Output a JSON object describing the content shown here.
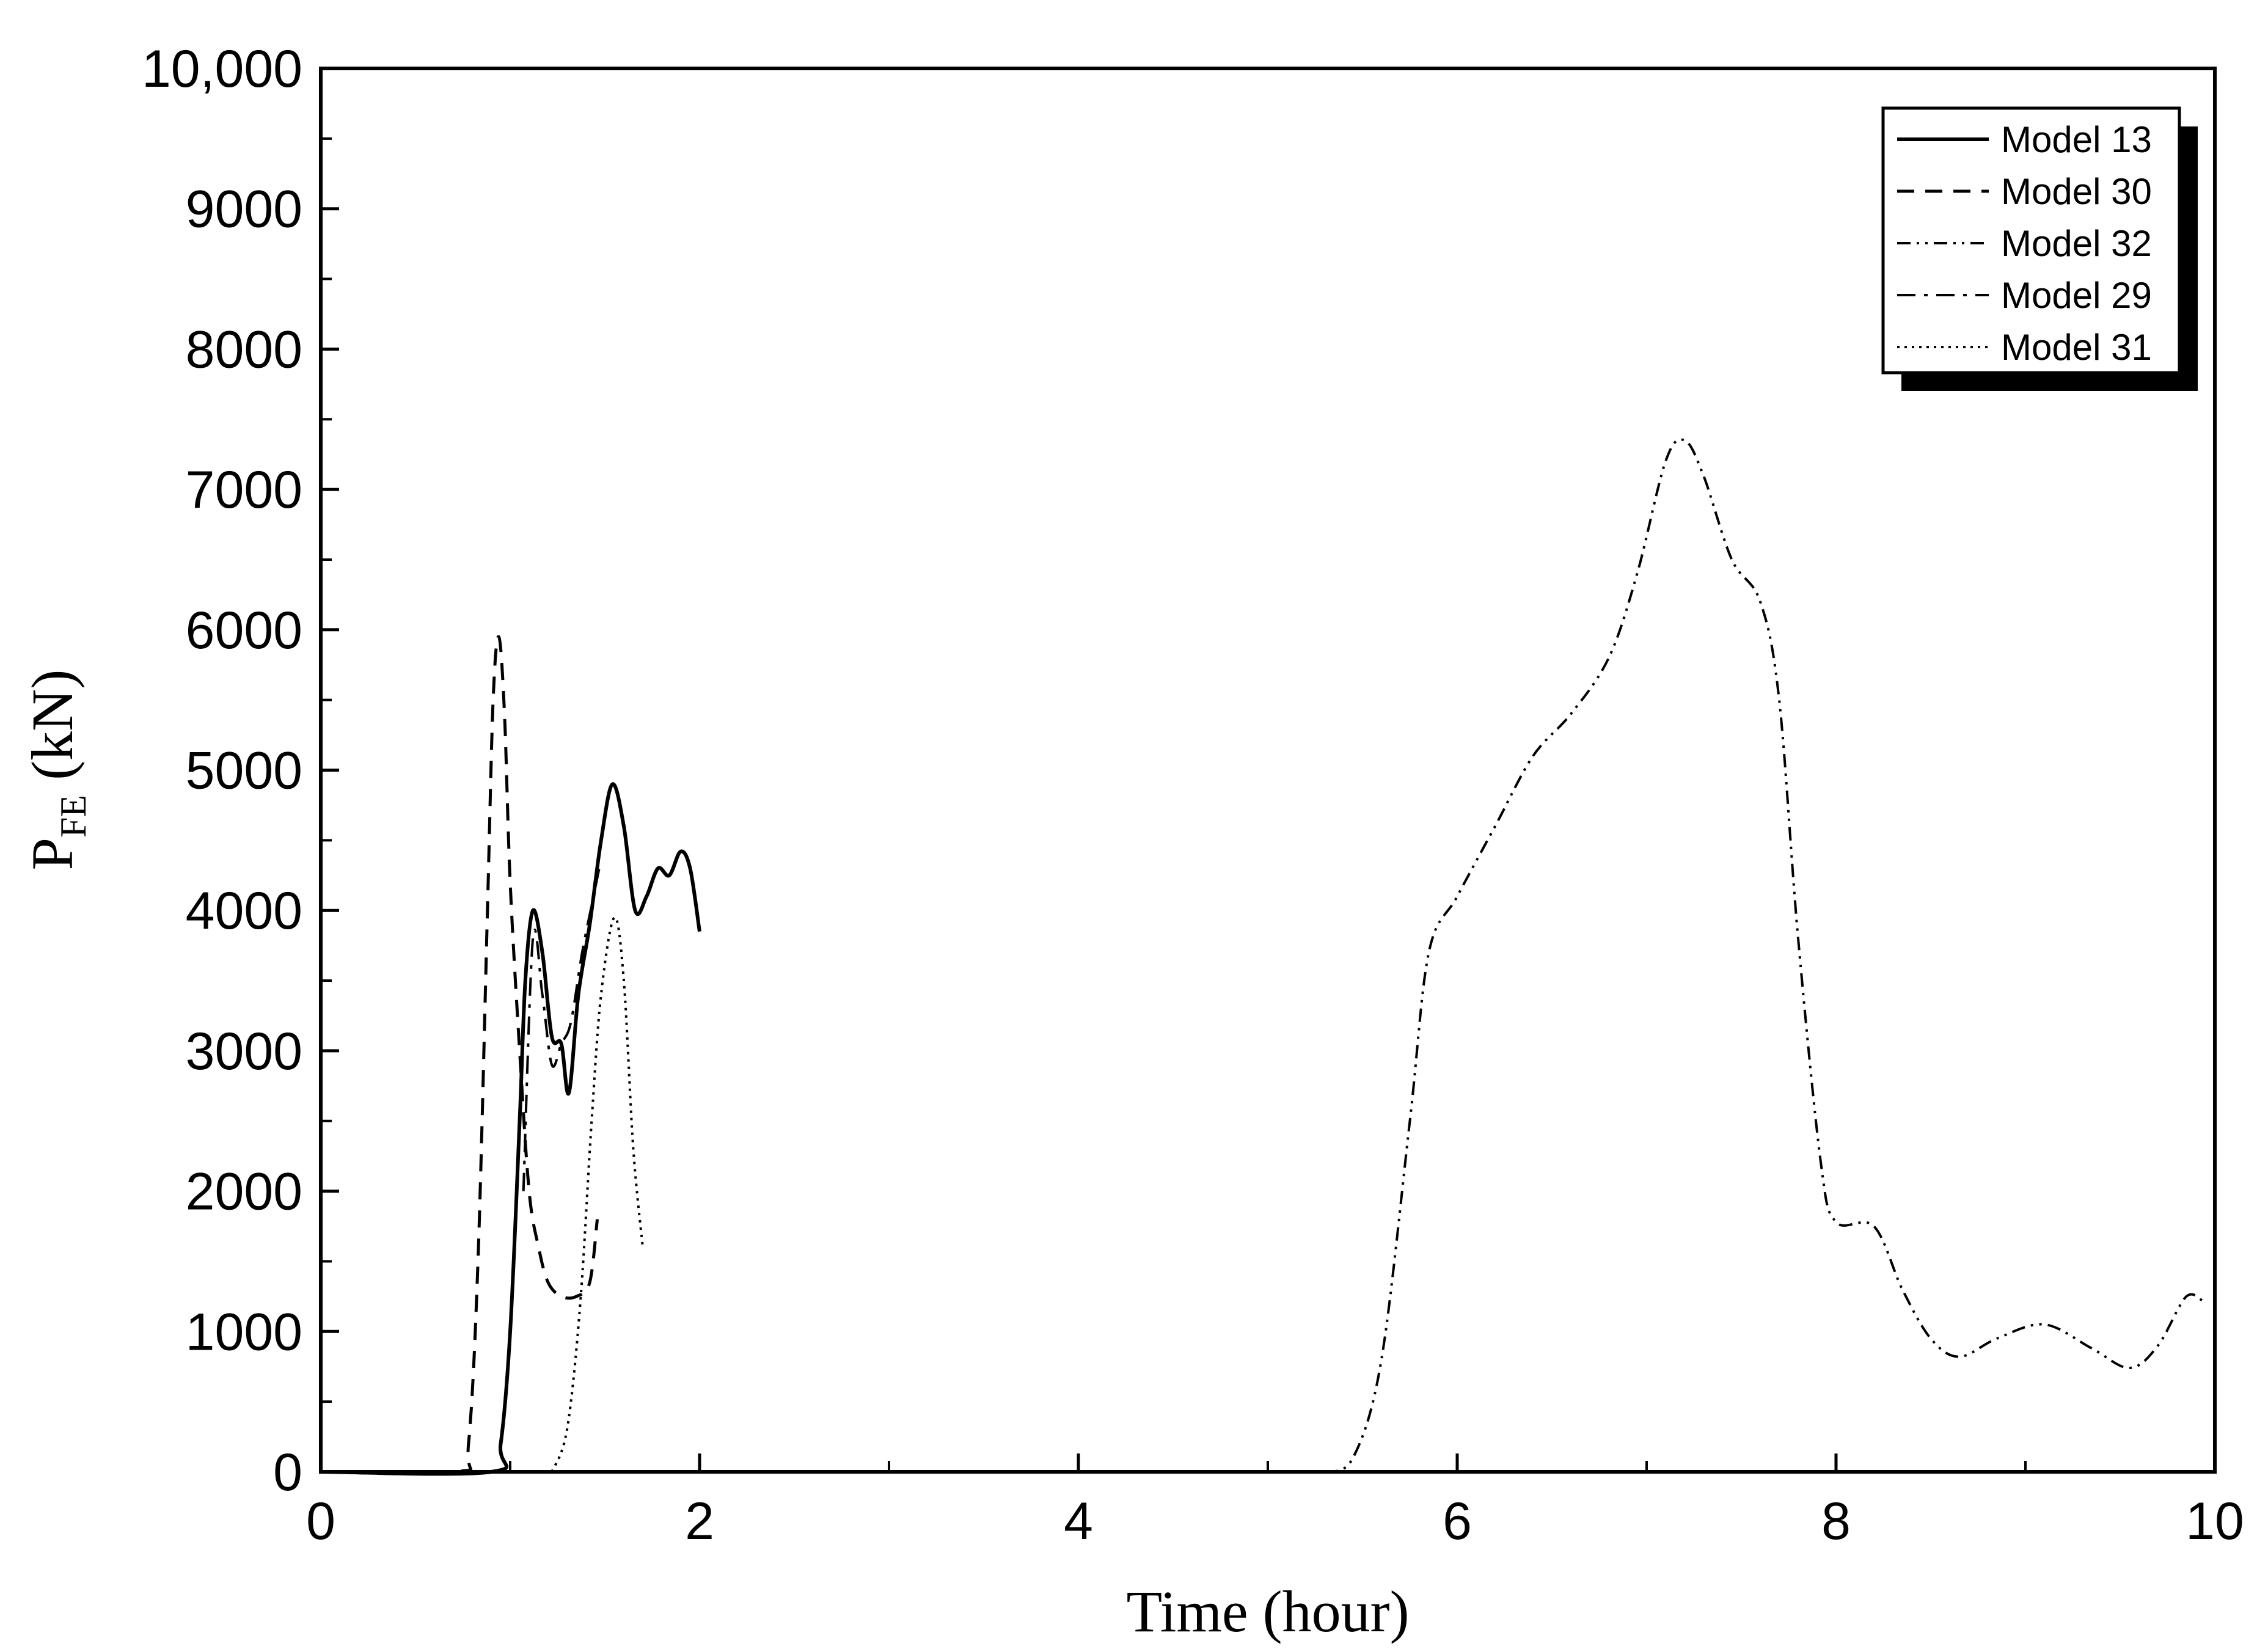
{
  "chart_data": {
    "type": "line",
    "xlabel": "Time (hour)",
    "ylabel": {
      "main": "P",
      "sub": "FE",
      "unit": " (kN)"
    },
    "xlim": [
      0,
      10
    ],
    "ylim": [
      0,
      10000
    ],
    "x_ticks": [
      {
        "value": 0,
        "label": "0"
      },
      {
        "value": 2,
        "label": "2"
      },
      {
        "value": 4,
        "label": "4"
      },
      {
        "value": 6,
        "label": "6"
      },
      {
        "value": 8,
        "label": "8"
      },
      {
        "value": 10,
        "label": "10"
      }
    ],
    "y_ticks": [
      {
        "value": 0,
        "label": "0"
      },
      {
        "value": 1000,
        "label": "1000"
      },
      {
        "value": 2000,
        "label": "2000"
      },
      {
        "value": 3000,
        "label": "3000"
      },
      {
        "value": 4000,
        "label": "4000"
      },
      {
        "value": 5000,
        "label": "5000"
      },
      {
        "value": 6000,
        "label": "6000"
      },
      {
        "value": 7000,
        "label": "7000"
      },
      {
        "value": 8000,
        "label": "8000"
      },
      {
        "value": 9000,
        "label": "9000"
      },
      {
        "value": 10000,
        "label": "10,000"
      }
    ],
    "grid": false,
    "legend_position": "top-right",
    "series": [
      {
        "name": "Model 13",
        "style": "solid",
        "points": [
          [
            0,
            0
          ],
          [
            0.9,
            0
          ],
          [
            0.95,
            200
          ],
          [
            1.0,
            1000
          ],
          [
            1.05,
            2500
          ],
          [
            1.08,
            3500
          ],
          [
            1.12,
            4000
          ],
          [
            1.17,
            3700
          ],
          [
            1.22,
            3100
          ],
          [
            1.27,
            3050
          ],
          [
            1.31,
            2700
          ],
          [
            1.36,
            3400
          ],
          [
            1.42,
            3900
          ],
          [
            1.48,
            4500
          ],
          [
            1.54,
            4900
          ],
          [
            1.6,
            4600
          ],
          [
            1.66,
            4000
          ],
          [
            1.72,
            4100
          ],
          [
            1.78,
            4300
          ],
          [
            1.84,
            4250
          ],
          [
            1.9,
            4420
          ],
          [
            1.95,
            4300
          ],
          [
            2.0,
            3850
          ]
        ]
      },
      {
        "name": "Model 30",
        "style": "dashed",
        "points": [
          [
            0,
            0
          ],
          [
            0.72,
            0
          ],
          [
            0.78,
            200
          ],
          [
            0.83,
            1500
          ],
          [
            0.88,
            4000
          ],
          [
            0.91,
            5500
          ],
          [
            0.94,
            5950
          ],
          [
            0.97,
            5400
          ],
          [
            1.0,
            4200
          ],
          [
            1.05,
            3000
          ],
          [
            1.1,
            2000
          ],
          [
            1.15,
            1600
          ],
          [
            1.2,
            1350
          ],
          [
            1.27,
            1250
          ],
          [
            1.35,
            1250
          ],
          [
            1.42,
            1350
          ],
          [
            1.46,
            1800
          ]
        ]
      },
      {
        "name": "Model 32",
        "style": "dash-dot-dot",
        "points": [
          [
            5.3,
            0
          ],
          [
            5.45,
            100
          ],
          [
            5.6,
            800
          ],
          [
            5.75,
            2500
          ],
          [
            5.85,
            3700
          ],
          [
            6.0,
            4100
          ],
          [
            6.2,
            4600
          ],
          [
            6.4,
            5100
          ],
          [
            6.6,
            5400
          ],
          [
            6.8,
            5800
          ],
          [
            6.95,
            6400
          ],
          [
            7.1,
            7200
          ],
          [
            7.2,
            7350
          ],
          [
            7.3,
            7100
          ],
          [
            7.45,
            6500
          ],
          [
            7.6,
            6200
          ],
          [
            7.7,
            5500
          ],
          [
            7.8,
            3800
          ],
          [
            7.92,
            2200
          ],
          [
            8.0,
            1780
          ],
          [
            8.2,
            1750
          ],
          [
            8.35,
            1300
          ],
          [
            8.5,
            950
          ],
          [
            8.65,
            820
          ],
          [
            8.85,
            950
          ],
          [
            9.1,
            1050
          ],
          [
            9.35,
            880
          ],
          [
            9.55,
            740
          ],
          [
            9.7,
            900
          ],
          [
            9.85,
            1250
          ],
          [
            9.95,
            1200
          ]
        ]
      },
      {
        "name": "Model 29",
        "style": "dash-dot",
        "points": [
          [
            1.07,
            2000
          ],
          [
            1.12,
            3800
          ],
          [
            1.17,
            3400
          ],
          [
            1.22,
            2900
          ],
          [
            1.27,
            3050
          ],
          [
            1.32,
            3200
          ],
          [
            1.38,
            3700
          ],
          [
            1.44,
            4100
          ],
          [
            1.47,
            4300
          ]
        ]
      },
      {
        "name": "Model 31",
        "style": "dotted",
        "points": [
          [
            1.22,
            0
          ],
          [
            1.3,
            300
          ],
          [
            1.37,
            1200
          ],
          [
            1.43,
            2500
          ],
          [
            1.48,
            3400
          ],
          [
            1.55,
            3950
          ],
          [
            1.6,
            3500
          ],
          [
            1.65,
            2300
          ],
          [
            1.7,
            1600
          ]
        ]
      }
    ]
  }
}
